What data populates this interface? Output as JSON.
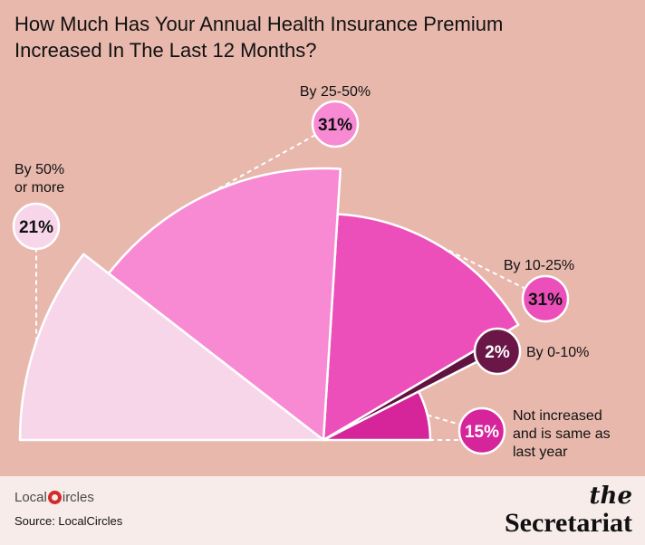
{
  "title_lines": [
    "How Much Has Your Annual Health Insurance Premium",
    "Increased In The Last 12 Months?"
  ],
  "chart_data": {
    "type": "pie",
    "title": "How Much Has Your Annual Health Insurance Premium Increased In The Last 12 Months?",
    "slices": [
      {
        "label_lines": [
          "Not increased",
          "and is same as",
          "last year"
        ],
        "value": 15,
        "value_label": "15%",
        "color": "#d6249a",
        "bubble_color": "#d6249a",
        "bubble_text_color": "#ffffff"
      },
      {
        "label_lines": [
          "By 0-10%"
        ],
        "value": 2,
        "value_label": "2%",
        "color": "#5e1340",
        "bubble_color": "#6a1747",
        "bubble_text_color": "#ffffff"
      },
      {
        "label_lines": [
          "By 10-25%"
        ],
        "value": 31,
        "value_label": "31%",
        "color": "#ec4fba",
        "bubble_color": "#ec4fba",
        "bubble_text_color": "#111111"
      },
      {
        "label_lines": [
          "By 25-50%"
        ],
        "value": 31,
        "value_label": "31%",
        "color": "#f88ad4",
        "bubble_color": "#f88ad4",
        "bubble_text_color": "#111111"
      },
      {
        "label_lines": [
          "By 50%",
          "or more"
        ],
        "value": 21,
        "value_label": "21%",
        "color": "#f8d6ea",
        "bubble_color": "#f8d6ea",
        "bubble_text_color": "#111111"
      }
    ]
  },
  "footer": {
    "logo_text_before": "Local",
    "logo_text_after": "ircles",
    "source": "Source: LocalCircles",
    "brand_the": "the",
    "brand_name": "Secretariat"
  }
}
